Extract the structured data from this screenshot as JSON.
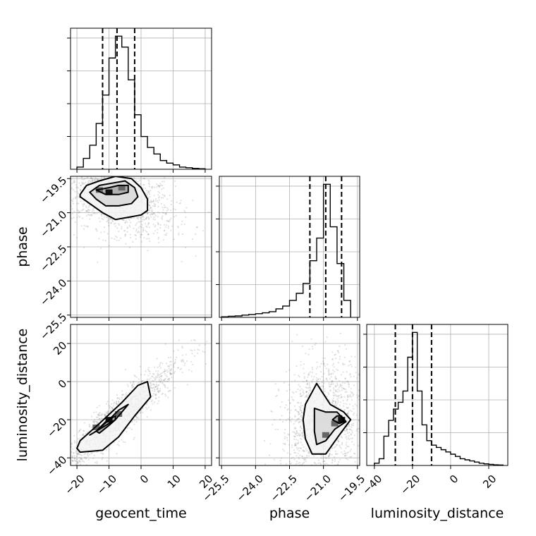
{
  "chart_data": {
    "type": "corner",
    "parameters": [
      "geocent_time",
      "phase",
      "luminosity_distance"
    ],
    "axis_labels": {
      "x": [
        "geocent_time",
        "phase",
        "luminosity_distance"
      ],
      "y": [
        "phase",
        "luminosity_distance"
      ]
    },
    "ranges": {
      "geocent_time": [
        -22,
        22
      ],
      "phase": [
        -25.6,
        -19.4
      ],
      "luminosity_distance": [
        -44,
        30
      ]
    },
    "ticks": {
      "geocent_time": {
        "values": [
          -20,
          -10,
          0,
          10,
          20
        ],
        "labels": [
          "−20",
          "−10",
          "0",
          "10",
          "20"
        ]
      },
      "phase": {
        "values": [
          -25.5,
          -24.0,
          -22.5,
          -21.0,
          -19.5
        ],
        "labels": [
          "−25.5",
          "−24.0",
          "−22.5",
          "−21.0",
          "−19.5"
        ]
      },
      "luminosity_distance": {
        "values": [
          -40,
          -20,
          0,
          20
        ],
        "labels": [
          "−40",
          "−20",
          "0",
          "20"
        ]
      }
    },
    "grid": true,
    "histograms": {
      "geocent_time": {
        "edges": [
          -20,
          -18,
          -16,
          -14,
          -12,
          -10,
          -8,
          -6,
          -4,
          -2,
          0,
          2,
          4,
          6,
          8,
          10,
          12,
          14,
          16,
          18,
          20
        ],
        "counts": [
          1,
          5,
          11,
          21,
          34,
          51,
          61,
          56,
          41,
          25,
          15,
          10,
          7,
          4,
          2.8,
          2,
          1,
          0.7,
          0.4,
          0.2
        ],
        "quantiles": [
          -12,
          -7.5,
          -2
        ]
      },
      "phase": {
        "edges": [
          -25.5,
          -25.2,
          -24.9,
          -24.6,
          -24.3,
          -24.0,
          -23.7,
          -23.4,
          -23.1,
          -22.8,
          -22.5,
          -22.2,
          -21.9,
          -21.6,
          -21.3,
          -21.0,
          -20.7,
          -20.4,
          -20.1,
          -19.8
        ],
        "counts": [
          0.2,
          0.4,
          0.5,
          0.8,
          1,
          1.3,
          1.6,
          2,
          3,
          4,
          6,
          8.5,
          12,
          20,
          28,
          47,
          32,
          19,
          6
        ],
        "quantiles": [
          -21.6,
          -20.9,
          -20.2
        ]
      },
      "luminosity_distance": {
        "edges": [
          -40,
          -37.5,
          -35,
          -32.5,
          -30,
          -27.5,
          -25,
          -22.5,
          -20,
          -17.5,
          -15,
          -12.5,
          -10,
          -7.5,
          -5,
          -2.5,
          0,
          2.5,
          5,
          7.5,
          10,
          12.5,
          15,
          17.5,
          20,
          22.5,
          25,
          27.5
        ],
        "counts": [
          1,
          3,
          13,
          20,
          25,
          28,
          33,
          48,
          59,
          33,
          18,
          11,
          9,
          8,
          7,
          6,
          5,
          4,
          3,
          2.5,
          2,
          1.5,
          1,
          0.7,
          0.5,
          0.3,
          0.2
        ],
        "quantiles": [
          -29,
          -20,
          -10
        ]
      }
    },
    "joint_2d": [
      {
        "x": "geocent_time",
        "y": "phase",
        "peaks": [
          [
            -10,
            -20.1
          ],
          [
            -6,
            -19.9
          ],
          [
            -13,
            -20.0
          ]
        ],
        "contour_levels": [
          [
            [
              -19,
              -20.2
            ],
            [
              -17,
              -19.8
            ],
            [
              -13,
              -19.6
            ],
            [
              -8,
              -19.4
            ],
            [
              -3,
              -19.5
            ],
            [
              0,
              -19.9
            ],
            [
              2,
              -20.4
            ],
            [
              2,
              -20.9
            ],
            [
              0,
              -21.1
            ],
            [
              -4,
              -21.2
            ],
            [
              -8,
              -21.3
            ],
            [
              -12,
              -21.0
            ],
            [
              -16,
              -20.6
            ],
            [
              -19,
              -20.3
            ]
          ],
          [
            [
              -16,
              -20.1
            ],
            [
              -13,
              -19.8
            ],
            [
              -9,
              -19.7
            ],
            [
              -5,
              -19.6
            ],
            [
              -2,
              -19.9
            ],
            [
              -1,
              -20.3
            ],
            [
              -3,
              -20.6
            ],
            [
              -7,
              -20.7
            ],
            [
              -11,
              -20.7
            ],
            [
              -14,
              -20.4
            ]
          ],
          [
            [
              -14,
              -20.0
            ],
            [
              -10,
              -19.9
            ],
            [
              -7,
              -19.8
            ],
            [
              -4,
              -19.8
            ],
            [
              -4,
              -20.1
            ],
            [
              -7,
              -20.2
            ],
            [
              -11,
              -20.2
            ]
          ]
        ]
      },
      {
        "x": "geocent_time",
        "y": "luminosity_distance",
        "peaks": [
          [
            -10,
            -20
          ],
          [
            -14,
            -24
          ],
          [
            -7,
            -17
          ]
        ],
        "contour_levels": [
          [
            [
              -19,
              -37
            ],
            [
              -12,
              -36
            ],
            [
              -7,
              -29
            ],
            [
              -2,
              -18
            ],
            [
              3,
              -8
            ],
            [
              2,
              0
            ],
            [
              -1,
              -2
            ],
            [
              -6,
              -11
            ],
            [
              -13,
              -22
            ],
            [
              -19,
              -31
            ],
            [
              -20,
              -35
            ]
          ],
          [
            [
              -16,
              -28
            ],
            [
              -12,
              -24
            ],
            [
              -8,
              -20
            ],
            [
              -5,
              -14
            ],
            [
              -4,
              -12
            ],
            [
              -7,
              -15
            ],
            [
              -10,
              -20
            ],
            [
              -14,
              -26
            ]
          ],
          [
            [
              -14,
              -26
            ],
            [
              -11,
              -21
            ],
            [
              -8,
              -18
            ],
            [
              -8,
              -20
            ],
            [
              -10,
              -23
            ],
            [
              -13,
              -27
            ]
          ]
        ]
      },
      {
        "x": "phase",
        "y": "luminosity_distance",
        "peaks": [
          [
            -20.2,
            -20
          ],
          [
            -20.5,
            -22
          ],
          [
            -20.9,
            -28
          ]
        ],
        "contour_levels": [
          [
            [
              -21.8,
              -12
            ],
            [
              -21.3,
              -1
            ],
            [
              -20.7,
              -12
            ],
            [
              -20.1,
              -16
            ],
            [
              -19.8,
              -20
            ],
            [
              -20.3,
              -28
            ],
            [
              -20.9,
              -38
            ],
            [
              -21.5,
              -38
            ],
            [
              -21.8,
              -30
            ],
            [
              -21.9,
              -20
            ]
          ],
          [
            [
              -21.4,
              -14
            ],
            [
              -20.9,
              -16
            ],
            [
              -20.4,
              -16
            ],
            [
              -20.0,
              -21
            ],
            [
              -20.5,
              -25
            ],
            [
              -20.9,
              -31
            ],
            [
              -21.3,
              -33
            ],
            [
              -21.4,
              -26
            ]
          ],
          [
            [
              -20.4,
              -18
            ],
            [
              -20.2,
              -18
            ],
            [
              -20.1,
              -21
            ],
            [
              -20.3,
              -22
            ],
            [
              -20.6,
              -20
            ]
          ]
        ]
      }
    ]
  }
}
